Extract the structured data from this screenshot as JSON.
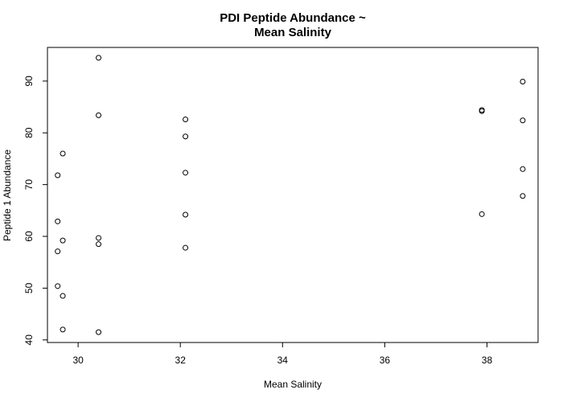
{
  "chart_data": {
    "type": "scatter",
    "title_line1": "PDI Peptide Abundance ~",
    "title_line2": "Mean Salinity",
    "xlabel": "Mean Salinity",
    "ylabel": "Peptide 1 Abundance",
    "xlim": [
      29.4,
      39.0
    ],
    "ylim": [
      39.5,
      96.5
    ],
    "x_ticks": [
      30,
      32,
      34,
      36,
      38
    ],
    "y_ticks": [
      40,
      50,
      60,
      70,
      80,
      90
    ],
    "marker": "open-circle",
    "grid": false,
    "points": [
      {
        "x": 29.6,
        "y": 71.8
      },
      {
        "x": 29.6,
        "y": 62.9
      },
      {
        "x": 29.6,
        "y": 57.1
      },
      {
        "x": 29.6,
        "y": 50.4
      },
      {
        "x": 29.7,
        "y": 76.0
      },
      {
        "x": 29.7,
        "y": 59.2
      },
      {
        "x": 29.7,
        "y": 48.5
      },
      {
        "x": 29.7,
        "y": 42.0
      },
      {
        "x": 30.4,
        "y": 94.5
      },
      {
        "x": 30.4,
        "y": 83.4
      },
      {
        "x": 30.4,
        "y": 59.7
      },
      {
        "x": 30.4,
        "y": 58.5
      },
      {
        "x": 30.4,
        "y": 41.5
      },
      {
        "x": 32.1,
        "y": 82.6
      },
      {
        "x": 32.1,
        "y": 79.3
      },
      {
        "x": 32.1,
        "y": 72.3
      },
      {
        "x": 32.1,
        "y": 64.2
      },
      {
        "x": 32.1,
        "y": 57.8
      },
      {
        "x": 37.9,
        "y": 84.2
      },
      {
        "x": 37.9,
        "y": 84.4
      },
      {
        "x": 37.9,
        "y": 64.3
      },
      {
        "x": 38.7,
        "y": 89.9
      },
      {
        "x": 38.7,
        "y": 82.4
      },
      {
        "x": 38.7,
        "y": 73.0
      },
      {
        "x": 38.7,
        "y": 67.8
      }
    ]
  }
}
